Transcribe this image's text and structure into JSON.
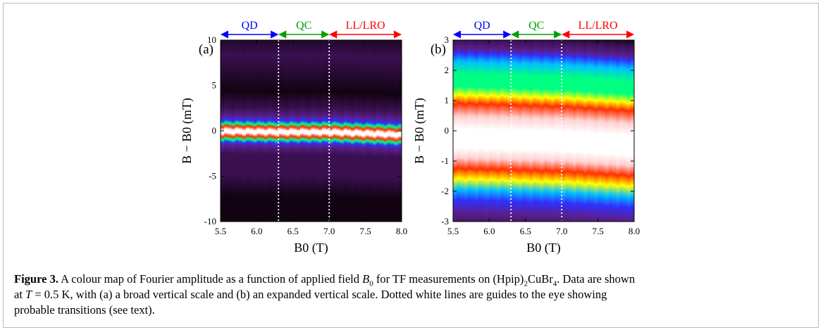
{
  "regions": [
    {
      "label": "QD",
      "color": "#0000ff"
    },
    {
      "label": "QC",
      "color": "#00a000"
    },
    {
      "label": "LL/LRO",
      "color": "#ff0000"
    }
  ],
  "transitions_T": [
    6.3,
    7.0
  ],
  "chart_data": [
    {
      "type": "heatmap",
      "panel_label": "(a)",
      "xlabel": "B0 (T)",
      "ylabel": "B − B0 (mT)",
      "xlim": [
        5.5,
        8.0
      ],
      "ylim": [
        -10,
        10
      ],
      "x_ticks": [
        "5.5",
        "6.0",
        "6.5",
        "7.0",
        "7.5",
        "8.0"
      ],
      "y_ticks": [
        "-10",
        "-5",
        "0",
        "5",
        "10"
      ],
      "center_line_mT": [
        [
          5.5,
          -0.2
        ],
        [
          6.3,
          -0.3
        ],
        [
          7.0,
          -0.3
        ],
        [
          8.0,
          -0.6
        ]
      ],
      "colormap": [
        "#120312",
        "#3a1050",
        "#5a2090",
        "#3030ff",
        "#00c0ff",
        "#00ff80",
        "#ffff00",
        "#ff3000",
        "#ffd0d0",
        "#ffffff"
      ]
    },
    {
      "type": "heatmap",
      "panel_label": "(b)",
      "xlabel": "B0 (T)",
      "ylabel": "B − B0 (mT)",
      "xlim": [
        5.5,
        8.0
      ],
      "ylim": [
        -3,
        3
      ],
      "x_ticks": [
        "5.5",
        "6.0",
        "6.5",
        "7.0",
        "7.5",
        "8.0"
      ],
      "y_ticks": [
        "-3",
        "-2",
        "-1",
        "0",
        "1",
        "2",
        "3"
      ],
      "center_line_mT": [
        [
          5.5,
          -0.2
        ],
        [
          6.3,
          -0.25
        ],
        [
          7.0,
          -0.3
        ],
        [
          8.0,
          -0.45
        ]
      ],
      "colormap": [
        "#120312",
        "#3a1050",
        "#5a2090",
        "#3030ff",
        "#00c0ff",
        "#00ff80",
        "#ffff00",
        "#ff3000",
        "#ffd0d0",
        "#ffffff"
      ]
    }
  ],
  "caption": {
    "label": "Figure 3.",
    "line1_pre": "A colour map of Fourier amplitude as a function of applied field ",
    "B": "B",
    "sub0": "0",
    "line1_mid": " for TF measurements on (Hpip)",
    "sub2": "2",
    "formula_mid": "CuBr",
    "sub4": "4",
    "line1_end": ". Data are shown",
    "line2_pre": "at ",
    "T": "T",
    "line2_rest": " = 0.5 K, with (a) a broad vertical scale and (b) an expanded vertical scale. Dotted white lines are guides to the eye showing",
    "line3": "probable transitions (see text)."
  }
}
